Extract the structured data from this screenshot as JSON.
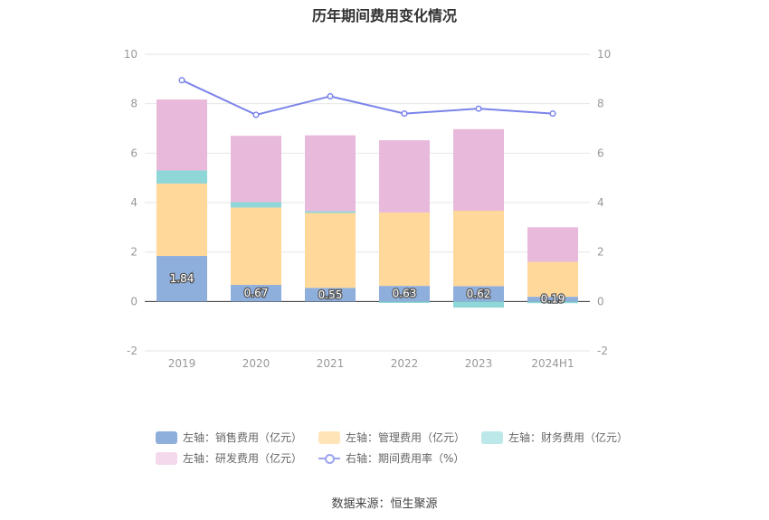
{
  "title": "历年期间费用变化情况",
  "source": "数据来源：恒生聚源",
  "legend": [
    {
      "label": "左轴：销售费用（亿元）",
      "color": "#8eaedc"
    },
    {
      "label": "左轴：管理费用（亿元）",
      "color": "#ffd89a"
    },
    {
      "label": "左轴：财务费用（亿元）",
      "color": "#8fd6d9"
    },
    {
      "label": "左轴：研发费用（亿元）",
      "color": "#e8b9da"
    },
    {
      "label": "右轴：期间费用率（%）",
      "color": "#7b84ea"
    }
  ],
  "chart_data": {
    "type": "bar",
    "stacked": true,
    "title": "历年期间费用变化情况",
    "categories": [
      "2019",
      "2020",
      "2021",
      "2022",
      "2023",
      "2024H1"
    ],
    "series": [
      {
        "name": "左轴：销售费用（亿元）",
        "axis": "left",
        "color": "#8eaedc",
        "values": [
          1.84,
          0.67,
          0.55,
          0.63,
          0.62,
          0.19
        ],
        "labels": [
          "1.84",
          "0.67",
          "0.55",
          "0.63",
          "0.62",
          "0.19"
        ]
      },
      {
        "name": "左轴：管理费用（亿元）",
        "axis": "left",
        "color": "#ffd89a",
        "values": [
          2.93,
          3.13,
          3.03,
          2.97,
          3.05,
          1.41
        ]
      },
      {
        "name": "左轴：财务费用（亿元）",
        "axis": "left",
        "color": "#8fd6d9",
        "values": [
          0.53,
          0.22,
          0.07,
          -0.06,
          -0.25,
          -0.07
        ]
      },
      {
        "name": "左轴：研发费用（亿元）",
        "axis": "left",
        "color": "#e8b9da",
        "values": [
          2.87,
          2.68,
          3.07,
          2.92,
          3.3,
          1.4
        ]
      },
      {
        "name": "右轴：期间费用率（%）",
        "type": "line",
        "axis": "right",
        "color": "#7b84ea",
        "values": [
          8.95,
          7.55,
          8.3,
          7.6,
          7.8,
          7.6
        ]
      }
    ],
    "ylim_left": [
      -2,
      10
    ],
    "ylim_right": [
      -2,
      10
    ],
    "yticks": [
      -2,
      0,
      2,
      4,
      6,
      8,
      10
    ],
    "ytick_labels": [
      "-2",
      "0",
      "2",
      "4",
      "6",
      "8",
      "10"
    ],
    "grid": true,
    "legend_position": "bottom"
  }
}
